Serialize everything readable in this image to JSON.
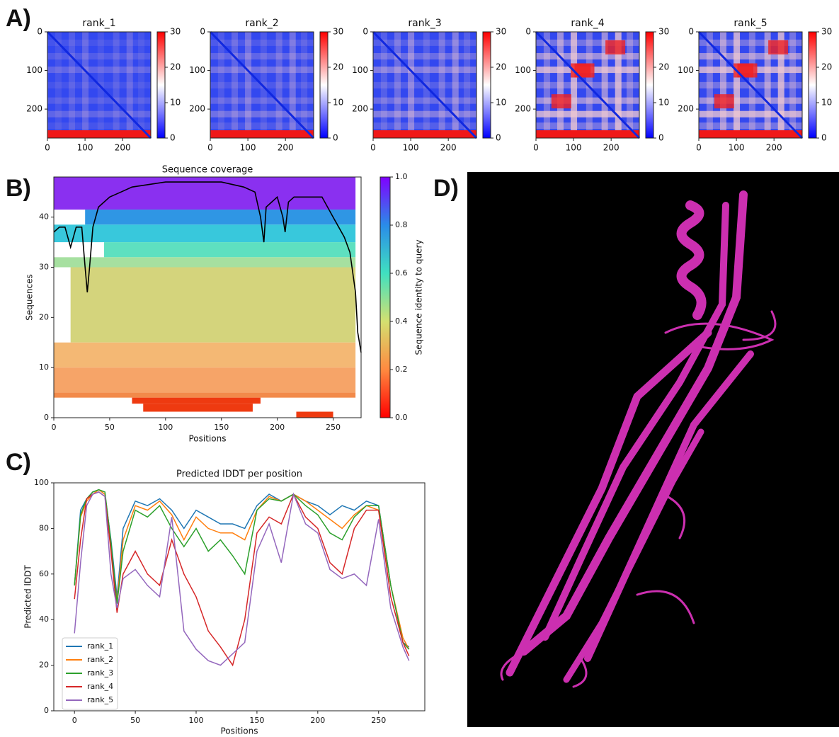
{
  "panel_labels": [
    "A)",
    "B)",
    "C)",
    "D)"
  ],
  "chart_data": [
    {
      "type": "heatmap",
      "title": "rank_1",
      "xlim": [
        0,
        275
      ],
      "ylim": [
        0,
        275
      ],
      "y_inverted": true,
      "xticks": [
        0,
        100,
        200
      ],
      "yticks": [
        0,
        100,
        200
      ],
      "colorbar": {
        "colormap": "bwr",
        "lim": [
          0,
          30
        ],
        "ticks": [
          0,
          10,
          20,
          30
        ]
      }
    },
    {
      "type": "heatmap",
      "title": "rank_2",
      "xlim": [
        0,
        275
      ],
      "ylim": [
        0,
        275
      ],
      "y_inverted": true,
      "xticks": [
        0,
        100,
        200
      ],
      "yticks": [
        0,
        100,
        200
      ],
      "colorbar": {
        "colormap": "bwr",
        "lim": [
          0,
          30
        ],
        "ticks": [
          0,
          10,
          20,
          30
        ]
      }
    },
    {
      "type": "heatmap",
      "title": "rank_3",
      "xlim": [
        0,
        275
      ],
      "ylim": [
        0,
        275
      ],
      "y_inverted": true,
      "xticks": [
        0,
        100,
        200
      ],
      "yticks": [
        0,
        100,
        200
      ],
      "colorbar": {
        "colormap": "bwr",
        "lim": [
          0,
          30
        ],
        "ticks": [
          0,
          10,
          20,
          30
        ]
      }
    },
    {
      "type": "heatmap",
      "title": "rank_4",
      "xlim": [
        0,
        275
      ],
      "ylim": [
        0,
        275
      ],
      "y_inverted": true,
      "xticks": [
        0,
        100,
        200
      ],
      "yticks": [
        0,
        100,
        200
      ],
      "colorbar": {
        "colormap": "bwr",
        "lim": [
          0,
          30
        ],
        "ticks": [
          0,
          10,
          20,
          30
        ]
      }
    },
    {
      "type": "heatmap",
      "title": "rank_5",
      "xlim": [
        0,
        275
      ],
      "ylim": [
        0,
        275
      ],
      "y_inverted": true,
      "xticks": [
        0,
        100,
        200
      ],
      "yticks": [
        0,
        100,
        200
      ],
      "colorbar": {
        "colormap": "bwr",
        "lim": [
          0,
          30
        ],
        "ticks": [
          0,
          10,
          20,
          30
        ]
      }
    },
    {
      "type": "coverage",
      "title": "Sequence coverage",
      "x_label": "Positions",
      "y_label": "Sequences",
      "xlim": [
        0,
        275
      ],
      "ylim": [
        0,
        48
      ],
      "xticks": [
        0,
        50,
        100,
        150,
        200,
        250
      ],
      "yticks": [
        0,
        10,
        20,
        30,
        40
      ],
      "line": {
        "color": "#000000",
        "x": [
          0,
          5,
          10,
          15,
          20,
          25,
          28,
          30,
          32,
          35,
          40,
          50,
          60,
          70,
          100,
          120,
          150,
          170,
          180,
          185,
          188,
          190,
          200,
          205,
          207,
          210,
          215,
          220,
          230,
          240,
          250,
          255,
          260,
          265,
          270,
          272,
          275
        ],
        "values": [
          37,
          38,
          38,
          34,
          38,
          38,
          30,
          25,
          30,
          38,
          42,
          44,
          45,
          46,
          47,
          47,
          47,
          46,
          45,
          40,
          35,
          42,
          44,
          40,
          37,
          43,
          44,
          44,
          44,
          44,
          40,
          38,
          36,
          33,
          25,
          17,
          13
        ]
      },
      "colorbar": {
        "label": "Sequence identity to query",
        "colormap": "rainbow_r",
        "lim": [
          0,
          1
        ],
        "ticks": [
          {
            "value": 0,
            "label": "0.0"
          },
          {
            "value": 0.2,
            "label": "0.2"
          },
          {
            "value": 0.4,
            "label": "0.4"
          },
          {
            "value": 0.6,
            "label": "0.6"
          },
          {
            "value": 0.8,
            "label": "0.8"
          },
          {
            "value": 1,
            "label": "1.0"
          }
        ]
      }
    },
    {
      "type": "line",
      "title": "Predicted lDDT per position",
      "x_label": "Positions",
      "y_label": "Predicted lDDT",
      "xlim": [
        -17,
        288
      ],
      "ylim": [
        0,
        100
      ],
      "xticks": [
        0,
        50,
        100,
        150,
        200,
        250
      ],
      "yticks": [
        0,
        20,
        40,
        60,
        80,
        100
      ],
      "legend": "lower left",
      "x": [
        0,
        5,
        10,
        15,
        20,
        25,
        30,
        35,
        40,
        50,
        60,
        70,
        80,
        90,
        100,
        110,
        120,
        130,
        140,
        150,
        160,
        170,
        180,
        190,
        200,
        210,
        220,
        230,
        240,
        250,
        260,
        270,
        275
      ],
      "series": [
        {
          "name": "rank_1",
          "color": "#1f77b4",
          "values": [
            55,
            88,
            93,
            96,
            97,
            95,
            75,
            50,
            80,
            92,
            90,
            93,
            88,
            80,
            88,
            85,
            82,
            82,
            80,
            90,
            95,
            92,
            95,
            92,
            90,
            86,
            90,
            88,
            92,
            90,
            55,
            30,
            28
          ]
        },
        {
          "name": "rank_2",
          "color": "#ff7f0e",
          "values": [
            55,
            85,
            92,
            95,
            97,
            95,
            72,
            48,
            75,
            90,
            88,
            92,
            86,
            75,
            85,
            80,
            78,
            78,
            75,
            88,
            94,
            92,
            95,
            92,
            88,
            84,
            80,
            86,
            90,
            88,
            55,
            32,
            27
          ]
        },
        {
          "name": "rank_3",
          "color": "#2ca02c",
          "values": [
            55,
            86,
            93,
            96,
            97,
            96,
            74,
            47,
            70,
            88,
            85,
            90,
            80,
            72,
            80,
            70,
            75,
            68,
            60,
            88,
            93,
            92,
            95,
            90,
            86,
            78,
            75,
            85,
            90,
            90,
            55,
            30,
            27
          ]
        },
        {
          "name": "rank_4",
          "color": "#d62728",
          "values": [
            49,
            75,
            93,
            95,
            96,
            94,
            70,
            43,
            60,
            70,
            60,
            55,
            75,
            60,
            50,
            35,
            28,
            20,
            40,
            78,
            85,
            82,
            95,
            85,
            80,
            65,
            60,
            80,
            88,
            88,
            50,
            30,
            24
          ]
        },
        {
          "name": "rank_5",
          "color": "#9467bd",
          "values": [
            34,
            65,
            90,
            95,
            96,
            94,
            60,
            45,
            58,
            62,
            55,
            50,
            85,
            35,
            27,
            22,
            20,
            25,
            30,
            70,
            82,
            65,
            95,
            82,
            78,
            62,
            58,
            60,
            55,
            84,
            45,
            28,
            22
          ]
        }
      ]
    }
  ]
}
